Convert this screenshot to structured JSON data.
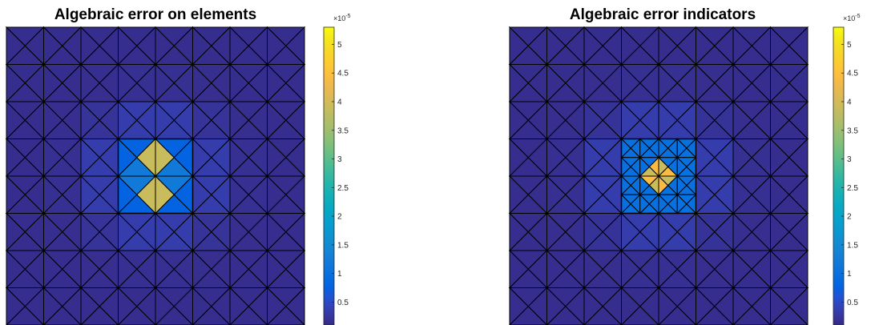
{
  "chart_data": [
    {
      "type": "heatmap",
      "title": "Algebraic error on elements",
      "mesh": {
        "grid": 8,
        "elements_per_square": 4,
        "x_range": [
          0,
          8
        ],
        "y_range": [
          0,
          8
        ]
      },
      "colorbar": {
        "colormap": "parula",
        "range": [
          1e-06,
          5.3e-05
        ],
        "ticks": [
          0.5,
          1,
          1.5,
          2,
          2.5,
          3,
          3.5,
          4,
          4.5,
          5
        ],
        "tick_labels": [
          "0.5",
          "1",
          "1.5",
          "2",
          "2.5",
          "3",
          "3.5",
          "4",
          "4.5",
          "5"
        ],
        "multiplier": "×10",
        "exponent": "-5"
      },
      "center_square": {
        "x": 4,
        "y": 4
      },
      "center_values": {
        "top": 1.2e-05,
        "bottom": 1.2e-05,
        "left": 3.9e-05,
        "right": 3.9e-05
      },
      "value_model": {
        "base": 1.5e-06,
        "near_peak": 9.5e-06,
        "decay": 0.55
      },
      "grid": true
    },
    {
      "type": "heatmap",
      "title": "Algebraic error indicators",
      "mesh": {
        "grid": 8,
        "elements_per_square": 4,
        "x_range": [
          0,
          8
        ],
        "y_range": [
          0,
          8
        ]
      },
      "colorbar": {
        "colormap": "parula",
        "range": [
          1e-06,
          5.3e-05
        ],
        "ticks": [
          0.5,
          1,
          1.5,
          2,
          2.5,
          3,
          3.5,
          4,
          4.5,
          5
        ],
        "tick_labels": [
          "0.5",
          "1",
          "1.5",
          "2",
          "2.5",
          "3",
          "3.5",
          "4",
          "4.5",
          "5"
        ],
        "multiplier": "×10",
        "exponent": "-5"
      },
      "center_square": {
        "x": 4,
        "y": 4
      },
      "center_values": {
        "top": 4.4e-05,
        "bottom": 4.4e-05,
        "left": 3.9e-05,
        "right": 3.9e-05
      },
      "refined_squares": [
        [
          3,
          3
        ],
        [
          3,
          4
        ],
        [
          4,
          3
        ],
        [
          4,
          4
        ]
      ],
      "refined_values": {
        "inner": 4.6e-05,
        "outer": 1e-05
      },
      "value_model": {
        "base": 1.5e-06,
        "near_peak": 9e-06,
        "decay": 0.55
      },
      "grid": true
    }
  ]
}
